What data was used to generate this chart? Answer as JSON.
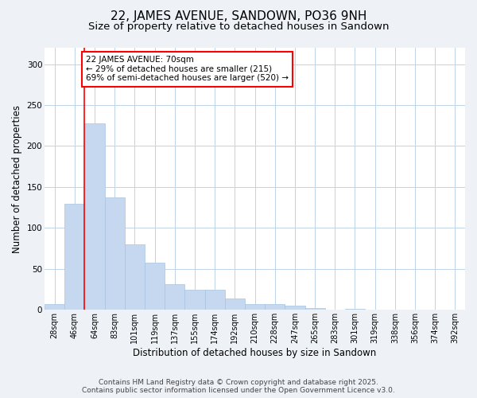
{
  "title": "22, JAMES AVENUE, SANDOWN, PO36 9NH",
  "subtitle": "Size of property relative to detached houses in Sandown",
  "xlabel": "Distribution of detached houses by size in Sandown",
  "ylabel": "Number of detached properties",
  "categories": [
    "28sqm",
    "46sqm",
    "64sqm",
    "83sqm",
    "101sqm",
    "119sqm",
    "137sqm",
    "155sqm",
    "174sqm",
    "192sqm",
    "210sqm",
    "228sqm",
    "247sqm",
    "265sqm",
    "283sqm",
    "301sqm",
    "319sqm",
    "338sqm",
    "356sqm",
    "374sqm",
    "392sqm"
  ],
  "values": [
    7,
    130,
    228,
    137,
    80,
    58,
    31,
    25,
    25,
    14,
    7,
    7,
    5,
    2,
    0,
    1,
    0,
    0,
    0,
    0,
    0
  ],
  "bar_color": "#c5d8f0",
  "bar_edge_color": "#a8c4e0",
  "annotation_line1": "22 JAMES AVENUE: 70sqm",
  "annotation_line2": "← 29% of detached houses are smaller (215)",
  "annotation_line3": "69% of semi-detached houses are larger (520) →",
  "red_line_index": 2,
  "ylim": [
    0,
    320
  ],
  "yticks": [
    0,
    50,
    100,
    150,
    200,
    250,
    300
  ],
  "footer1": "Contains HM Land Registry data © Crown copyright and database right 2025.",
  "footer2": "Contains public sector information licensed under the Open Government Licence v3.0.",
  "bg_color": "#eef2f7",
  "plot_bg_color": "#ffffff",
  "grid_color": "#c0d4e8",
  "title_fontsize": 11,
  "subtitle_fontsize": 9.5,
  "tick_fontsize": 7,
  "ylabel_fontsize": 8.5,
  "xlabel_fontsize": 8.5,
  "footer_fontsize": 6.5,
  "annotation_fontsize": 7.5
}
